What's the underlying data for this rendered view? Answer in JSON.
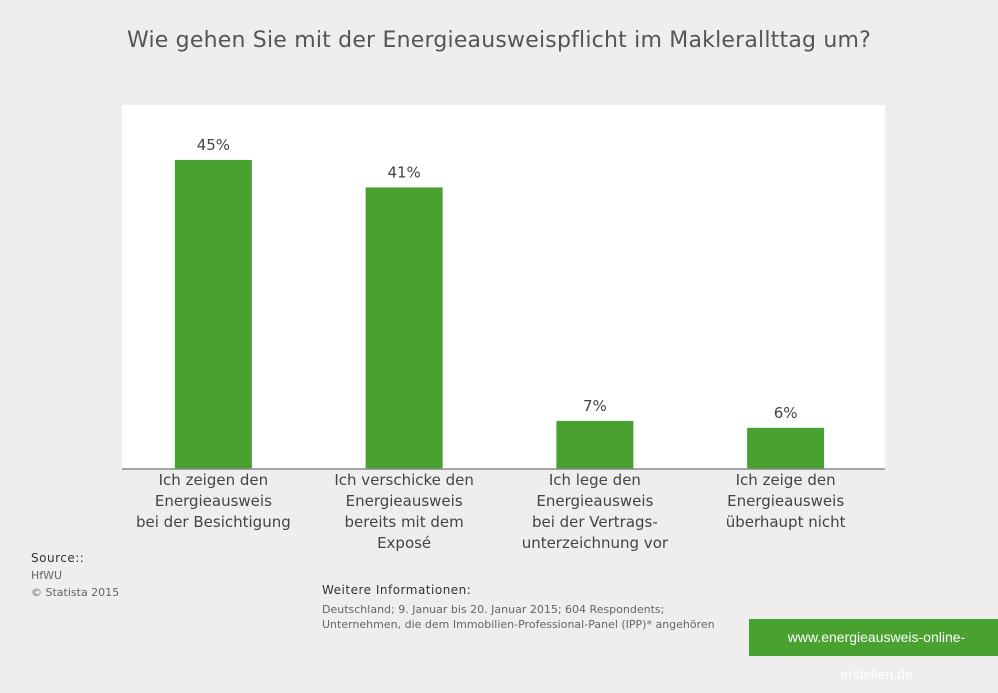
{
  "title": "Wie gehen Sie mit der Energieausweispflicht im Maklerallttag um?",
  "chart_data": {
    "type": "bar",
    "categories": [
      [
        "Ich zeigen den",
        "Energieausweis",
        "bei der Besichtigung"
      ],
      [
        "Ich verschicke den",
        "Energieausweis",
        "bereits mit dem",
        "Exposé"
      ],
      [
        "Ich lege den",
        "Energieausweis",
        "bei der Vertrags-",
        "unterzeichnung vor"
      ],
      [
        "Ich zeige den",
        "Energieausweis",
        "überhaupt nicht"
      ]
    ],
    "values": [
      45,
      41,
      7,
      6
    ],
    "data_labels": [
      "45%",
      "41%",
      "7%",
      "6%"
    ],
    "ylim": [
      0,
      53
    ],
    "unit": "%",
    "bar_color": "#49a12f",
    "grid": false
  },
  "source": {
    "heading": "Source::",
    "lines": [
      "HfWU",
      "© Statista 2015"
    ]
  },
  "info": {
    "heading": "Weitere Informationen:",
    "lines": [
      "Deutschland; 9. Januar bis 20. Januar 2015; 604 Respondents;",
      "Unternehmen, die dem Immobilien-Professional-Panel (IPP)* angehören"
    ]
  },
  "banner": "www.energieausweis-online-erstellen.de"
}
